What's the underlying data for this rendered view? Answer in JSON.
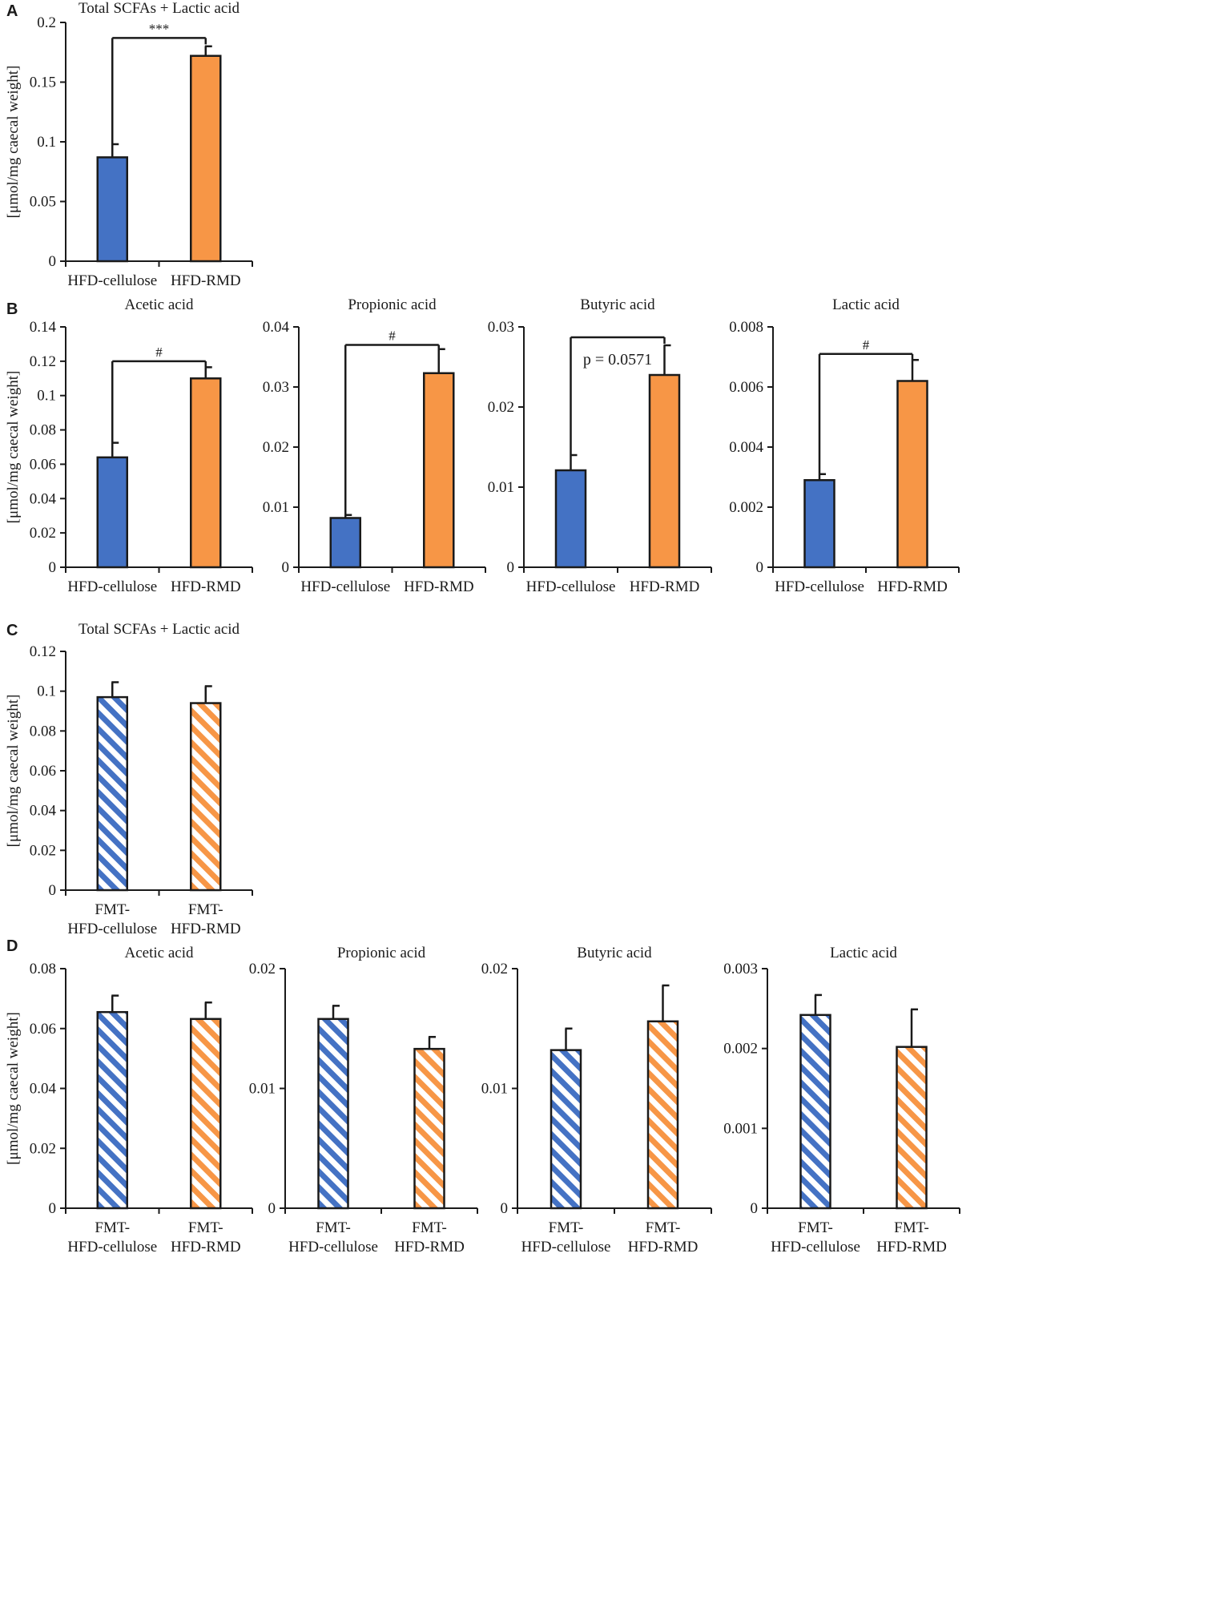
{
  "colors": {
    "blue": "#4472c4",
    "orange": "#f79646",
    "axis": "#1a1a1a",
    "text": "#1a1a1a"
  },
  "chart_data": [
    {
      "panel": "A",
      "type": "bar",
      "fill": "solid",
      "title": "Total SCFAs + Lactic acid",
      "ylabel": "[μmol/mg caecal weight]",
      "categories": [
        [
          "HFD-cellulose"
        ],
        [
          "HFD-RMD"
        ]
      ],
      "values": [
        0.087,
        0.172
      ],
      "errors": [
        0.011,
        0.008
      ],
      "ylim": [
        0,
        0.2
      ],
      "yticks": [
        0,
        0.05,
        0.1,
        0.15,
        0.2
      ],
      "ytick_labels": [
        "0",
        "0.05",
        "0.1",
        "0.15",
        "0.2"
      ],
      "significance": {
        "label": "***",
        "level": 0.187
      }
    },
    {
      "panel": "B",
      "type": "bar",
      "fill": "solid",
      "title": "Acetic acid",
      "ylabel": "[μmol/mg caecal weight]",
      "categories": [
        [
          "HFD-cellulose"
        ],
        [
          "HFD-RMD"
        ]
      ],
      "values": [
        0.064,
        0.11
      ],
      "errors": [
        0.0085,
        0.0065
      ],
      "ylim": [
        0,
        0.14
      ],
      "yticks": [
        0,
        0.02,
        0.04,
        0.06,
        0.08,
        0.1,
        0.12,
        0.14
      ],
      "ytick_labels": [
        "0",
        "0.02",
        "0.04",
        "0.06",
        "0.08",
        "0.1",
        "0.12",
        "0.14"
      ],
      "significance": {
        "label": "#",
        "level": 0.12
      }
    },
    {
      "panel": "B",
      "type": "bar",
      "fill": "solid",
      "title": "Propionic acid",
      "categories": [
        [
          "HFD-cellulose"
        ],
        [
          "HFD-RMD"
        ]
      ],
      "values": [
        0.0082,
        0.0323
      ],
      "errors": [
        0.0005,
        0.004
      ],
      "ylim": [
        0,
        0.04
      ],
      "yticks": [
        0,
        0.01,
        0.02,
        0.03,
        0.04
      ],
      "ytick_labels": [
        "0",
        "0.01",
        "0.02",
        "0.03",
        "0.04"
      ],
      "significance": {
        "label": "#",
        "level": 0.037
      }
    },
    {
      "panel": "B",
      "type": "bar",
      "fill": "solid",
      "title": "Butyric acid",
      "categories": [
        [
          "HFD-cellulose"
        ],
        [
          "HFD-RMD"
        ]
      ],
      "values": [
        0.0121,
        0.024
      ],
      "errors": [
        0.0019,
        0.0037
      ],
      "ylim": [
        0,
        0.03
      ],
      "yticks": [
        0,
        0.01,
        0.02,
        0.03
      ],
      "ytick_labels": [
        "0",
        "0.01",
        "0.02",
        "0.03"
      ],
      "significance": {
        "label": "p = 0.0571",
        "level": 0.0287
      }
    },
    {
      "panel": "B",
      "type": "bar",
      "fill": "solid",
      "title": "Lactic acid",
      "categories": [
        [
          "HFD-cellulose"
        ],
        [
          "HFD-RMD"
        ]
      ],
      "values": [
        0.0029,
        0.0062
      ],
      "errors": [
        0.0002,
        0.0007
      ],
      "ylim": [
        0,
        0.008
      ],
      "yticks": [
        0,
        0.002,
        0.004,
        0.006,
        0.008
      ],
      "ytick_labels": [
        "0",
        "0.002",
        "0.004",
        "0.006",
        "0.008"
      ],
      "significance": {
        "label": "#",
        "level": 0.0071
      }
    },
    {
      "panel": "C",
      "type": "bar",
      "fill": "hatched",
      "title": "Total SCFAs + Lactic acid",
      "ylabel": "[μmol/mg caecal weight]",
      "categories": [
        [
          "FMT-",
          "HFD-cellulose"
        ],
        [
          "FMT-",
          "HFD-RMD"
        ]
      ],
      "values": [
        0.097,
        0.094
      ],
      "errors": [
        0.0075,
        0.0085
      ],
      "ylim": [
        0,
        0.12
      ],
      "yticks": [
        0,
        0.02,
        0.04,
        0.06,
        0.08,
        0.1,
        0.12
      ],
      "ytick_labels": [
        "0",
        "0.02",
        "0.04",
        "0.06",
        "0.08",
        "0.1",
        "0.12"
      ]
    },
    {
      "panel": "D",
      "type": "bar",
      "fill": "hatched",
      "title": "Acetic acid",
      "ylabel": "[μmol/mg caecal weight]",
      "categories": [
        [
          "FMT-",
          "HFD-cellulose"
        ],
        [
          "FMT-",
          "HFD-RMD"
        ]
      ],
      "values": [
        0.0655,
        0.0632
      ],
      "errors": [
        0.0055,
        0.0055
      ],
      "ylim": [
        0,
        0.08
      ],
      "yticks": [
        0,
        0.02,
        0.04,
        0.06,
        0.08
      ],
      "ytick_labels": [
        "0",
        "0.02",
        "0.04",
        "0.06",
        "0.08"
      ]
    },
    {
      "panel": "D",
      "type": "bar",
      "fill": "hatched",
      "title": "Propionic acid",
      "categories": [
        [
          "FMT-",
          "HFD-cellulose"
        ],
        [
          "FMT-",
          "HFD-RMD"
        ]
      ],
      "values": [
        0.0158,
        0.0133
      ],
      "errors": [
        0.0011,
        0.001
      ],
      "ylim": [
        0,
        0.02
      ],
      "yticks": [
        0,
        0.01,
        0.02
      ],
      "ytick_labels": [
        "0",
        "0.01",
        "0.02"
      ]
    },
    {
      "panel": "D",
      "type": "bar",
      "fill": "hatched",
      "title": "Butyric acid",
      "categories": [
        [
          "FMT-",
          "HFD-cellulose"
        ],
        [
          "FMT-",
          "HFD-RMD"
        ]
      ],
      "values": [
        0.0132,
        0.0156
      ],
      "errors": [
        0.0018,
        0.003
      ],
      "ylim": [
        0,
        0.02
      ],
      "yticks": [
        0,
        0.01,
        0.02
      ],
      "ytick_labels": [
        "0",
        "0.01",
        "0.02"
      ]
    },
    {
      "panel": "D",
      "type": "bar",
      "fill": "hatched",
      "title": "Lactic acid",
      "categories": [
        [
          "FMT-",
          "HFD-cellulose"
        ],
        [
          "FMT-",
          "HFD-RMD"
        ]
      ],
      "values": [
        0.00242,
        0.00202
      ],
      "errors": [
        0.00025,
        0.00047
      ],
      "ylim": [
        0,
        0.003
      ],
      "yticks": [
        0,
        0.001,
        0.002,
        0.003
      ],
      "ytick_labels": [
        "0",
        "0.001",
        "0.002",
        "0.003"
      ]
    }
  ]
}
